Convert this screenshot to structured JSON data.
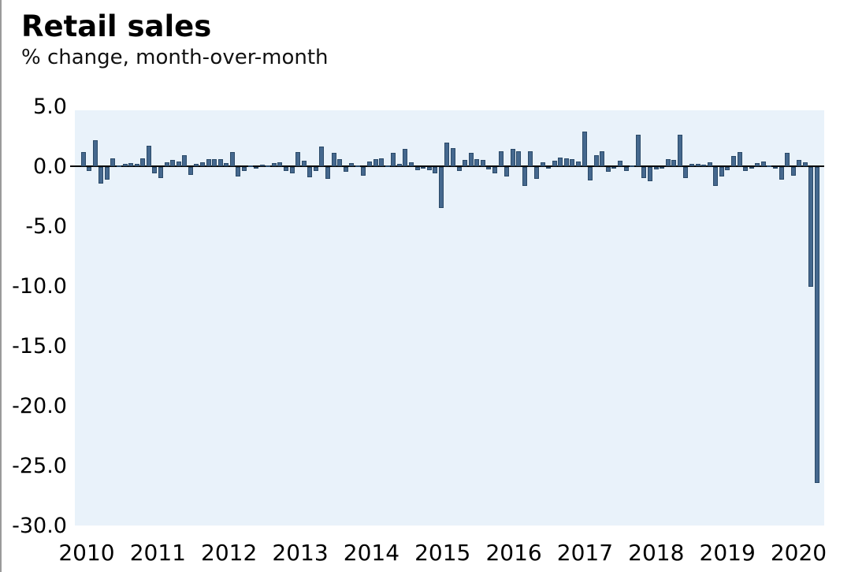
{
  "page": {
    "title": "Retail sales",
    "subtitle": "% change, month-over-month"
  },
  "chart_data": {
    "type": "bar",
    "title": "Retail sales",
    "subtitle": "% change, month-over-month",
    "ylabel": "% change, month-over-month",
    "xlabel": "",
    "frequency": "monthly",
    "start_month": "2010-01",
    "end_month": "2020-04",
    "ylim": [
      -30.0,
      4.7
    ],
    "grid": "off",
    "legend": "none",
    "y_tick_labels": [
      "5.0",
      "0.0",
      "-5.0",
      "-10.0",
      "-15.0",
      "-20.0",
      "-25.0",
      "-30.0"
    ],
    "y_tick_values": [
      5,
      0,
      -5,
      -10,
      -15,
      -20,
      -25,
      -30
    ],
    "x_tick_labels": [
      "2010",
      "2011",
      "2012",
      "2013",
      "2014",
      "2015",
      "2016",
      "2017",
      "2018",
      "2019",
      "2020"
    ],
    "values_by_year": {
      "2010": [
        1.2,
        -0.3,
        2.2,
        -1.35,
        -1.05,
        0.7,
        0.05,
        0.2,
        0.3,
        0.25,
        0.7,
        1.75
      ],
      "2011": [
        -0.55,
        -0.9,
        0.35,
        0.55,
        0.45,
        0.95,
        -0.65,
        0.25,
        0.35,
        0.6,
        0.65,
        0.6
      ],
      "2012": [
        0.3,
        1.2,
        -0.8,
        -0.35,
        0.1,
        -0.1,
        0.15,
        0.1,
        0.3,
        0.35,
        -0.3,
        -0.55
      ],
      "2013": [
        1.2,
        0.5,
        -0.85,
        -0.3,
        1.7,
        -1.0,
        1.15,
        0.65,
        -0.4,
        0.3,
        0.05,
        -0.7
      ],
      "2014": [
        0.4,
        0.6,
        0.7,
        0.05,
        1.15,
        0.2,
        1.5,
        0.35,
        -0.25,
        -0.1,
        -0.25,
        -0.55
      ],
      "2015": [
        -3.4,
        2.0,
        1.55,
        -0.3,
        0.55,
        1.15,
        0.6,
        0.55,
        -0.2,
        -0.5,
        1.3,
        -0.8
      ],
      "2016": [
        1.5,
        1.25,
        -1.6,
        1.3,
        -1.0,
        0.35,
        -0.1,
        0.5,
        0.75,
        0.7,
        0.6,
        0.45
      ],
      "2017": [
        2.9,
        -1.1,
        0.95,
        1.25,
        -0.4,
        -0.1,
        0.5,
        -0.3,
        0.1,
        2.65,
        -0.9,
        -1.2
      ],
      "2018": [
        -0.2,
        -0.15,
        0.6,
        0.55,
        2.65,
        -0.9,
        0.2,
        0.2,
        0.15,
        0.35,
        -1.6,
        -0.8
      ],
      "2019": [
        -0.25,
        0.9,
        1.2,
        -0.3,
        -0.1,
        0.3,
        0.45,
        0.05,
        -0.1,
        -1.05,
        1.15,
        -0.75
      ],
      "2020": [
        0.55,
        0.35,
        -10.0,
        -26.4
      ]
    },
    "colors": {
      "bar_fill": "#45688e",
      "bar_border": "#2b4a68",
      "plot_background": "#e9f2fa",
      "axis_line": "#0a0a0a",
      "text": "#000000"
    }
  }
}
